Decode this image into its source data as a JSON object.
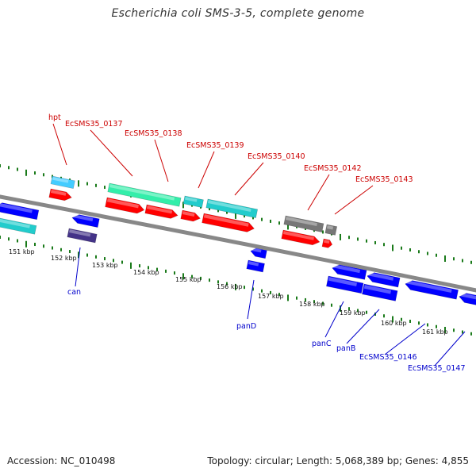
{
  "title": "Escherichia coli SMS-3-5, complete genome",
  "footer": {
    "accession": "Accession: NC_010498",
    "stats": "Topology: circular; Length: 5,068,389 bp; Genes: 4,855"
  },
  "colors": {
    "backbone": "#888888",
    "tick": "#1a7a1a",
    "forward_label": "#cc0000",
    "reverse_label": "#0000cc",
    "cds": "#ff0000",
    "cds_rev": "#0000ff",
    "cog_cyan": "#22cccc",
    "cog_teal": "#33eeaa",
    "cog_sky": "#44ccff",
    "cog_gray": "#777777",
    "cog_navy": "#443388"
  },
  "ticks": {
    "labels": [
      "151 kbp",
      "152 kbp",
      "153 kbp",
      "154 kbp",
      "155 kbp",
      "156 kbp",
      "157 kbp",
      "158 kbp",
      "159 kbp",
      "160 kbp",
      "161 kbp"
    ]
  },
  "forward_genes": [
    "hpt",
    "EcSMS35_0137",
    "EcSMS35_0138",
    "EcSMS35_0139",
    "EcSMS35_0140",
    "EcSMS35_0142",
    "EcSMS35_0143"
  ],
  "reverse_genes": [
    "can",
    "panD",
    "panC",
    "panB",
    "EcSMS35_0146",
    "EcSMS35_0147"
  ]
}
